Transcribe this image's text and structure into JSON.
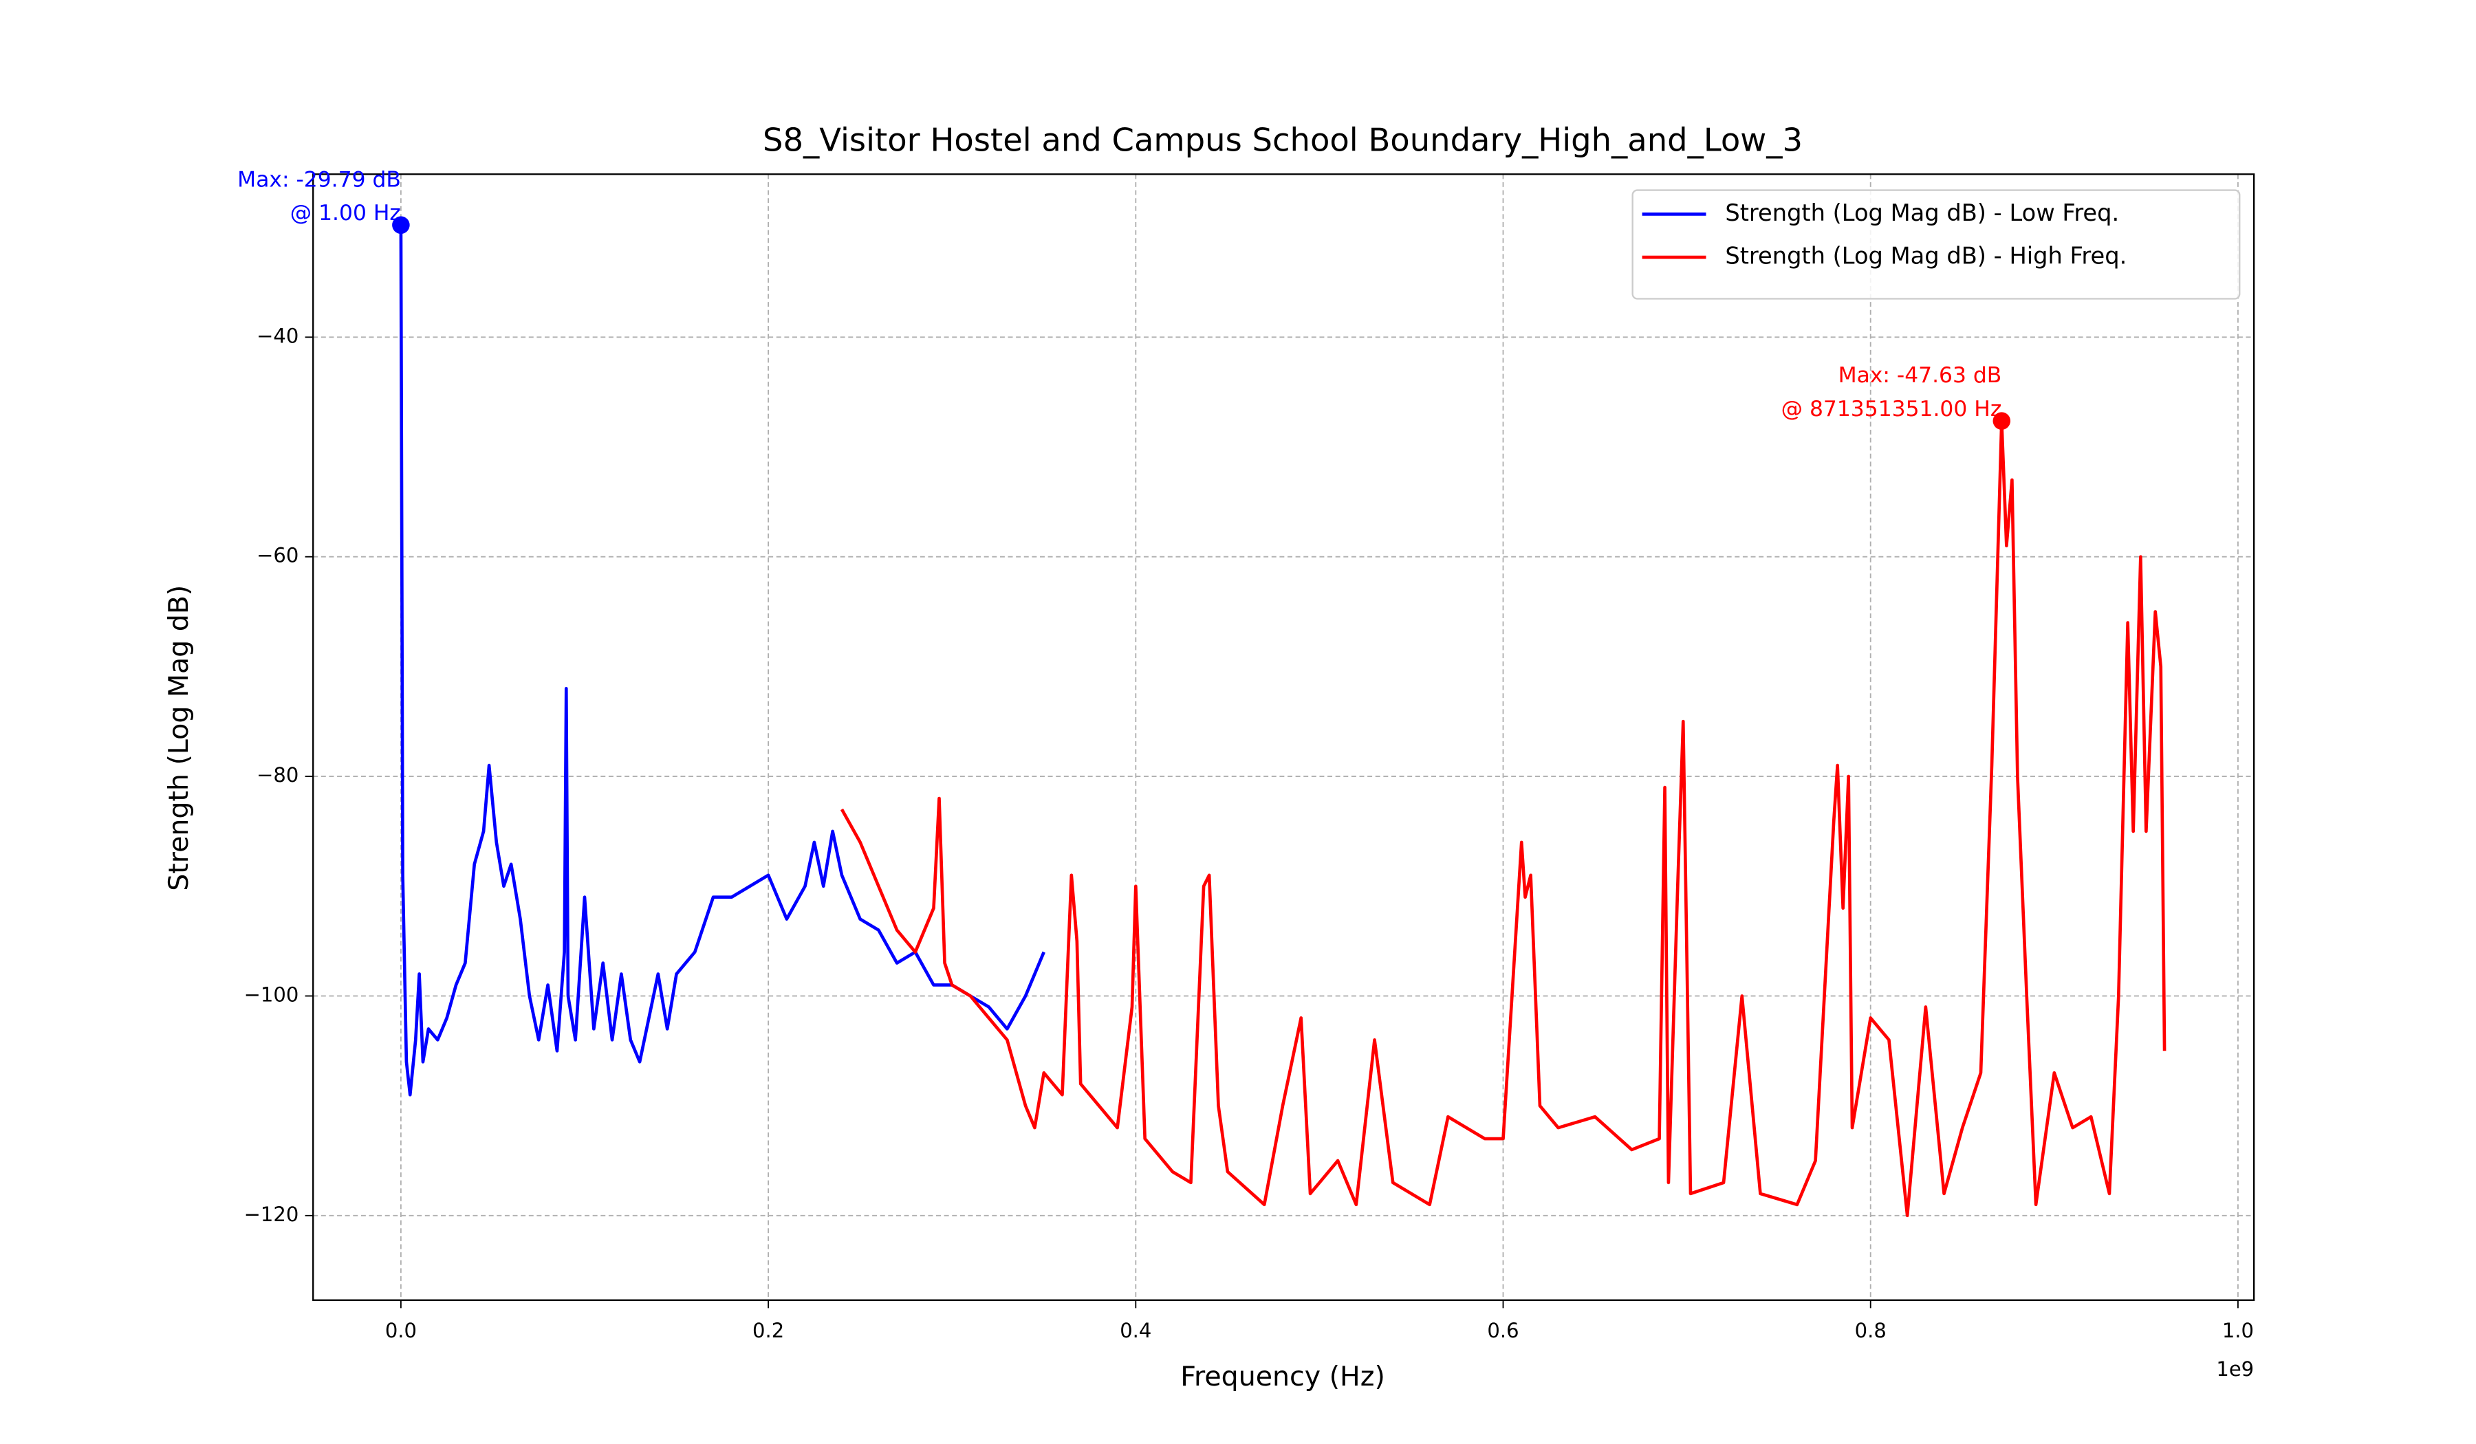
{
  "chart_data": {
    "type": "line",
    "title": "S8_Visitor Hostel and Campus School Boundary_High_and_Low_3",
    "x_label": "Frequency (Hz)",
    "y_label": "Strength (Log Mag dB)",
    "x_offset_label": "1e9",
    "xlim": [
      -47800000,
      1008700000
    ],
    "ylim": [
      -127.7,
      -25.16
    ],
    "xticks": [
      {
        "value": 0,
        "label": "0.0"
      },
      {
        "value": 200000000,
        "label": "0.2"
      },
      {
        "value": 400000000,
        "label": "0.4"
      },
      {
        "value": 600000000,
        "label": "0.6"
      },
      {
        "value": 800000000,
        "label": "0.8"
      },
      {
        "value": 1000000000,
        "label": "1.0"
      }
    ],
    "yticks": [
      {
        "value": -40,
        "label": "−40"
      },
      {
        "value": -60,
        "label": "−60"
      },
      {
        "value": -80,
        "label": "−80"
      },
      {
        "value": -100,
        "label": "−100"
      },
      {
        "value": -120,
        "label": "−120"
      }
    ],
    "grid": true,
    "legend": "upper right",
    "series": [
      {
        "name": "Strength (Log Mag dB) - Low Freq.",
        "color": "#0000ff",
        "x": [
          1,
          1000000,
          3000000,
          5000000,
          8000000,
          10000000,
          12000000,
          15000000,
          20000000,
          25000000,
          30000000,
          35000000,
          40000000,
          45000000,
          48000000,
          52000000,
          56000000,
          60000000,
          65000000,
          70000000,
          75000000,
          80000000,
          85000000,
          89000000,
          90000000,
          91000000,
          95000000,
          100000000,
          105000000,
          110000000,
          115000000,
          120000000,
          125000000,
          130000000,
          135000000,
          140000000,
          145000000,
          150000000,
          160000000,
          170000000,
          180000000,
          190000000,
          200000000,
          210000000,
          220000000,
          225000000,
          230000000,
          235000000,
          240000000,
          250000000,
          260000000,
          270000000,
          280000000,
          290000000,
          300000000,
          310000000,
          320000000,
          330000000,
          340000000,
          350000000
        ],
        "values": [
          -29.79,
          -89,
          -106,
          -109,
          -104,
          -98,
          -106,
          -103,
          -104,
          -102,
          -99,
          -97,
          -88,
          -85,
          -79,
          -86,
          -90,
          -88,
          -93,
          -100,
          -104,
          -99,
          -105,
          -96,
          -72,
          -100,
          -104,
          -91,
          -103,
          -97,
          -104,
          -98,
          -104,
          -106,
          -102,
          -98,
          -103,
          -98,
          -96,
          -91,
          -91,
          -90,
          -89,
          -93,
          -90,
          -86,
          -90,
          -85,
          -89,
          -93,
          -94,
          -97,
          -96,
          -99,
          -99,
          -100,
          -101,
          -103,
          -100,
          -96
        ]
      },
      {
        "name": "Strength (Log Mag dB) - High Freq.",
        "color": "#ff0000",
        "x": [
          240000000,
          250000000,
          260000000,
          270000000,
          280000000,
          290000000,
          293000000,
          296000000,
          300000000,
          310000000,
          320000000,
          330000000,
          340000000,
          345000000,
          350000000,
          360000000,
          365000000,
          368000000,
          370000000,
          380000000,
          390000000,
          398000000,
          400000000,
          405000000,
          420000000,
          430000000,
          437000000,
          440000000,
          445000000,
          450000000,
          470000000,
          480000000,
          490000000,
          495000000,
          510000000,
          520000000,
          530000000,
          540000000,
          560000000,
          570000000,
          590000000,
          600000000,
          610000000,
          612000000,
          615000000,
          620000000,
          630000000,
          650000000,
          670000000,
          685000000,
          688000000,
          690000000,
          695000000,
          698000000,
          702000000,
          720000000,
          730000000,
          740000000,
          760000000,
          770000000,
          780000000,
          782000000,
          785000000,
          788000000,
          790000000,
          800000000,
          810000000,
          820000000,
          830000000,
          840000000,
          850000000,
          860000000,
          866000000,
          871351351,
          874000000,
          877000000,
          880000000,
          885000000,
          890000000,
          900000000,
          910000000,
          920000000,
          930000000,
          935000000,
          940000000,
          943000000,
          947000000,
          950000000,
          955000000,
          958000000,
          960000000
        ],
        "values": [
          -83,
          -86,
          -90,
          -94,
          -96,
          -92,
          -82,
          -97,
          -99,
          -100,
          -102,
          -104,
          -110,
          -112,
          -107,
          -109,
          -89,
          -95,
          -108,
          -110,
          -112,
          -101,
          -90,
          -113,
          -116,
          -117,
          -90,
          -89,
          -110,
          -116,
          -119,
          -110,
          -102,
          -118,
          -115,
          -119,
          -104,
          -117,
          -119,
          -111,
          -113,
          -113,
          -86,
          -91,
          -89,
          -110,
          -112,
          -111,
          -114,
          -113,
          -81,
          -117,
          -90,
          -75,
          -118,
          -117,
          -100,
          -118,
          -119,
          -115,
          -84,
          -79,
          -92,
          -80,
          -112,
          -102,
          -104,
          -120,
          -101,
          -118,
          -112,
          -107,
          -79,
          -47.63,
          -59,
          -53,
          -80,
          -100,
          -119,
          -107,
          -112,
          -111,
          -118,
          -100,
          -66,
          -85,
          -60,
          -85,
          -65,
          -70,
          -105
        ]
      }
    ],
    "annotations": [
      {
        "text": [
          "Max: -29.79 dB",
          "@ 1.00 Hz"
        ],
        "x": 1,
        "y": -29.79,
        "color": "#0000ff"
      },
      {
        "text": [
          "Max: -47.63 dB",
          "@ 871351351.00 Hz"
        ],
        "x": 871351351,
        "y": -47.63,
        "color": "#ff0000"
      }
    ]
  }
}
